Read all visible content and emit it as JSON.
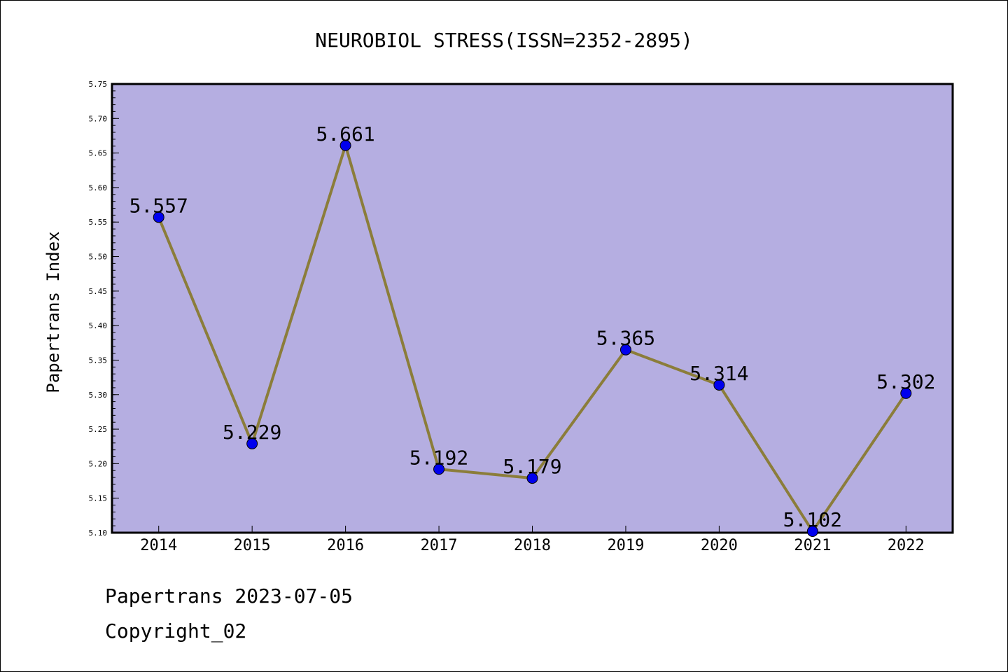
{
  "chart_data": {
    "type": "line",
    "title": "NEUROBIOL STRESS(ISSN=2352-2895)",
    "xlabel": "",
    "ylabel": "Papertrans Index",
    "categories": [
      "2014",
      "2015",
      "2016",
      "2017",
      "2018",
      "2019",
      "2020",
      "2021",
      "2022"
    ],
    "series": [
      {
        "values": [
          5.557,
          5.229,
          5.661,
          5.192,
          5.179,
          5.365,
          5.314,
          5.102,
          5.302
        ],
        "labels": [
          "5.557",
          "5.229",
          "5.661",
          "5.192",
          "5.179",
          "5.365",
          "5.314",
          "5.102",
          "5.302"
        ]
      }
    ],
    "ylim": [
      5.1,
      5.75
    ],
    "yticks": [
      "5.10",
      "5.15",
      "5.20",
      "5.25",
      "5.30",
      "5.35",
      "5.40",
      "5.45",
      "5.50",
      "5.55",
      "5.60",
      "5.65",
      "5.70",
      "5.75"
    ],
    "grid": false,
    "colors": {
      "plot_background": "#b5aee1",
      "line": "#8b7d3a",
      "marker": "#0000ee",
      "marker_edge": "#000000"
    }
  },
  "footer": {
    "date_line": "Papertrans 2023-07-05",
    "copyright_line": "Copyright_02"
  }
}
